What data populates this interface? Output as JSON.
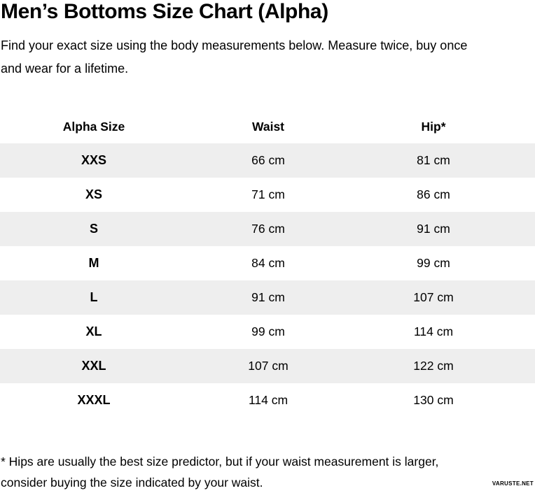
{
  "page": {
    "title": "Men’s Bottoms Size Chart (Alpha)",
    "subtitle_line1": "Find your exact size using the body measurements below. Measure twice, buy once",
    "subtitle_line2": "and wear for a lifetime.",
    "footnote_line1": "* Hips are usually the best size predictor, but if your waist measurement is larger,",
    "footnote_line2": "consider buying the size indicated by your waist.",
    "watermark": "VARUSTE.NET"
  },
  "table": {
    "headers": [
      "Alpha Size",
      "Waist",
      "Hip*"
    ],
    "rows": [
      {
        "size": "XXS",
        "waist": "66 cm",
        "hip": "81 cm"
      },
      {
        "size": "XS",
        "waist": "71 cm",
        "hip": "86 cm"
      },
      {
        "size": "S",
        "waist": "76 cm",
        "hip": "91 cm"
      },
      {
        "size": "M",
        "waist": "84 cm",
        "hip": "99 cm"
      },
      {
        "size": "L",
        "waist": "91 cm",
        "hip": "107 cm"
      },
      {
        "size": "XL",
        "waist": "99 cm",
        "hip": "114 cm"
      },
      {
        "size": "XXL",
        "waist": "107 cm",
        "hip": "122 cm"
      },
      {
        "size": "XXXL",
        "waist": "114 cm",
        "hip": "130 cm"
      }
    ]
  },
  "colors": {
    "background": "#ffffff",
    "stripe": "#eeeeee",
    "text": "#000000"
  },
  "chart_data": {
    "type": "table",
    "title": "Men’s Bottoms Size Chart (Alpha)",
    "columns": [
      "Alpha Size",
      "Waist",
      "Hip*"
    ],
    "rows": [
      [
        "XXS",
        "66 cm",
        "81 cm"
      ],
      [
        "XS",
        "71 cm",
        "86 cm"
      ],
      [
        "S",
        "76 cm",
        "91 cm"
      ],
      [
        "M",
        "84 cm",
        "99 cm"
      ],
      [
        "L",
        "91 cm",
        "107 cm"
      ],
      [
        "XL",
        "99 cm",
        "114 cm"
      ],
      [
        "XXL",
        "107 cm",
        "122 cm"
      ],
      [
        "XXXL",
        "114 cm",
        "130 cm"
      ]
    ]
  }
}
